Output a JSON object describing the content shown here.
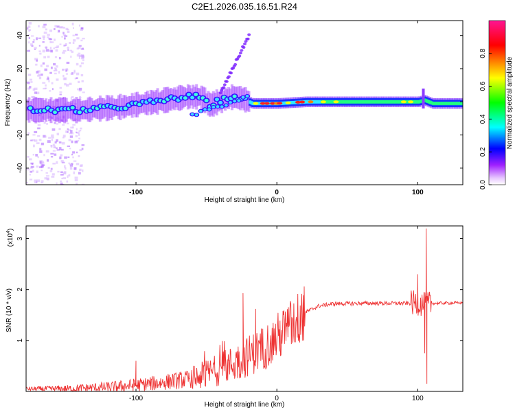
{
  "title": "C2E1.2026.035.16.51.R24",
  "chart_data": [
    {
      "type": "heatmap",
      "name": "spectrogram",
      "xlabel": "Height of straight line (km)",
      "ylabel": "Frequency (Hz)",
      "xlim": [
        -178,
        132
      ],
      "ylim": [
        -50,
        49
      ],
      "xticks": [
        -100,
        0,
        100
      ],
      "xtick_labels": [
        "-100",
        "0",
        "100"
      ],
      "yticks": [
        -40,
        -20,
        0,
        20,
        40
      ],
      "ytick_labels": [
        "-40",
        "-20",
        "0",
        "20",
        "40"
      ],
      "ridge": {
        "x": [
          -178,
          -160,
          -140,
          -125,
          -110,
          -95,
          -80,
          -65,
          -55,
          -48,
          -40,
          -32,
          -25,
          -18,
          -10,
          0,
          20,
          50,
          80,
          100,
          104,
          110,
          132
        ],
        "freq": [
          -5,
          -5,
          -5,
          -4,
          -3,
          -1,
          1,
          3,
          3,
          -2,
          1,
          3,
          2,
          -1,
          -1,
          -1,
          0,
          0,
          0,
          0,
          1,
          -1,
          -1
        ]
      },
      "colorbar": {
        "label": "Normalized spectral amplitude",
        "range": [
          0,
          1
        ],
        "ticks": [
          0.0,
          0.2,
          0.4,
          0.6,
          0.8
        ],
        "tick_labels": [
          "0.0",
          "0.2",
          "0.4",
          "0.6",
          "0.8"
        ],
        "colors": [
          "#ffffff",
          "#a020ff",
          "#0000ff",
          "#00ffff",
          "#00ff00",
          "#ffff00",
          "#ff8000",
          "#ff0000",
          "#ff1493"
        ]
      }
    },
    {
      "type": "line",
      "name": "snr",
      "xlabel": "Height of straight line (km)",
      "ylabel": "SNR (10 * v/v)",
      "multiplier": "(x10",
      "multiplier_exp": "4",
      "multiplier_close": ")",
      "xlim": [
        -178,
        132
      ],
      "ylim": [
        0,
        3.25
      ],
      "xticks": [
        -100,
        0,
        100
      ],
      "xtick_labels": [
        "-100",
        "0",
        "100"
      ],
      "yticks": [
        1,
        2,
        3
      ],
      "ytick_labels": [
        "1",
        "2",
        "3"
      ],
      "color": "#ee3333",
      "trend": {
        "x": [
          -178,
          -150,
          -120,
          -100,
          -80,
          -60,
          -50,
          -40,
          -30,
          -20,
          -10,
          0,
          10,
          20,
          30,
          40,
          60,
          80,
          95,
          100,
          105,
          110,
          132
        ],
        "y": [
          0.05,
          0.05,
          0.08,
          0.12,
          0.18,
          0.25,
          0.33,
          0.45,
          0.55,
          0.7,
          0.85,
          1.05,
          1.3,
          1.55,
          1.68,
          1.72,
          1.73,
          1.73,
          1.73,
          1.74,
          1.7,
          1.73,
          1.74
        ]
      },
      "spikes": [
        {
          "x": -100,
          "y": 0.6
        },
        {
          "x": -24,
          "y": 1.93
        },
        {
          "x": -15,
          "y": 1.62
        },
        {
          "x": 100,
          "y": 2.3
        },
        {
          "x": 106,
          "y": 3.2
        },
        {
          "x": 106.5,
          "y": 0.15
        },
        {
          "x": 105,
          "y": 0.75
        }
      ]
    }
  ]
}
